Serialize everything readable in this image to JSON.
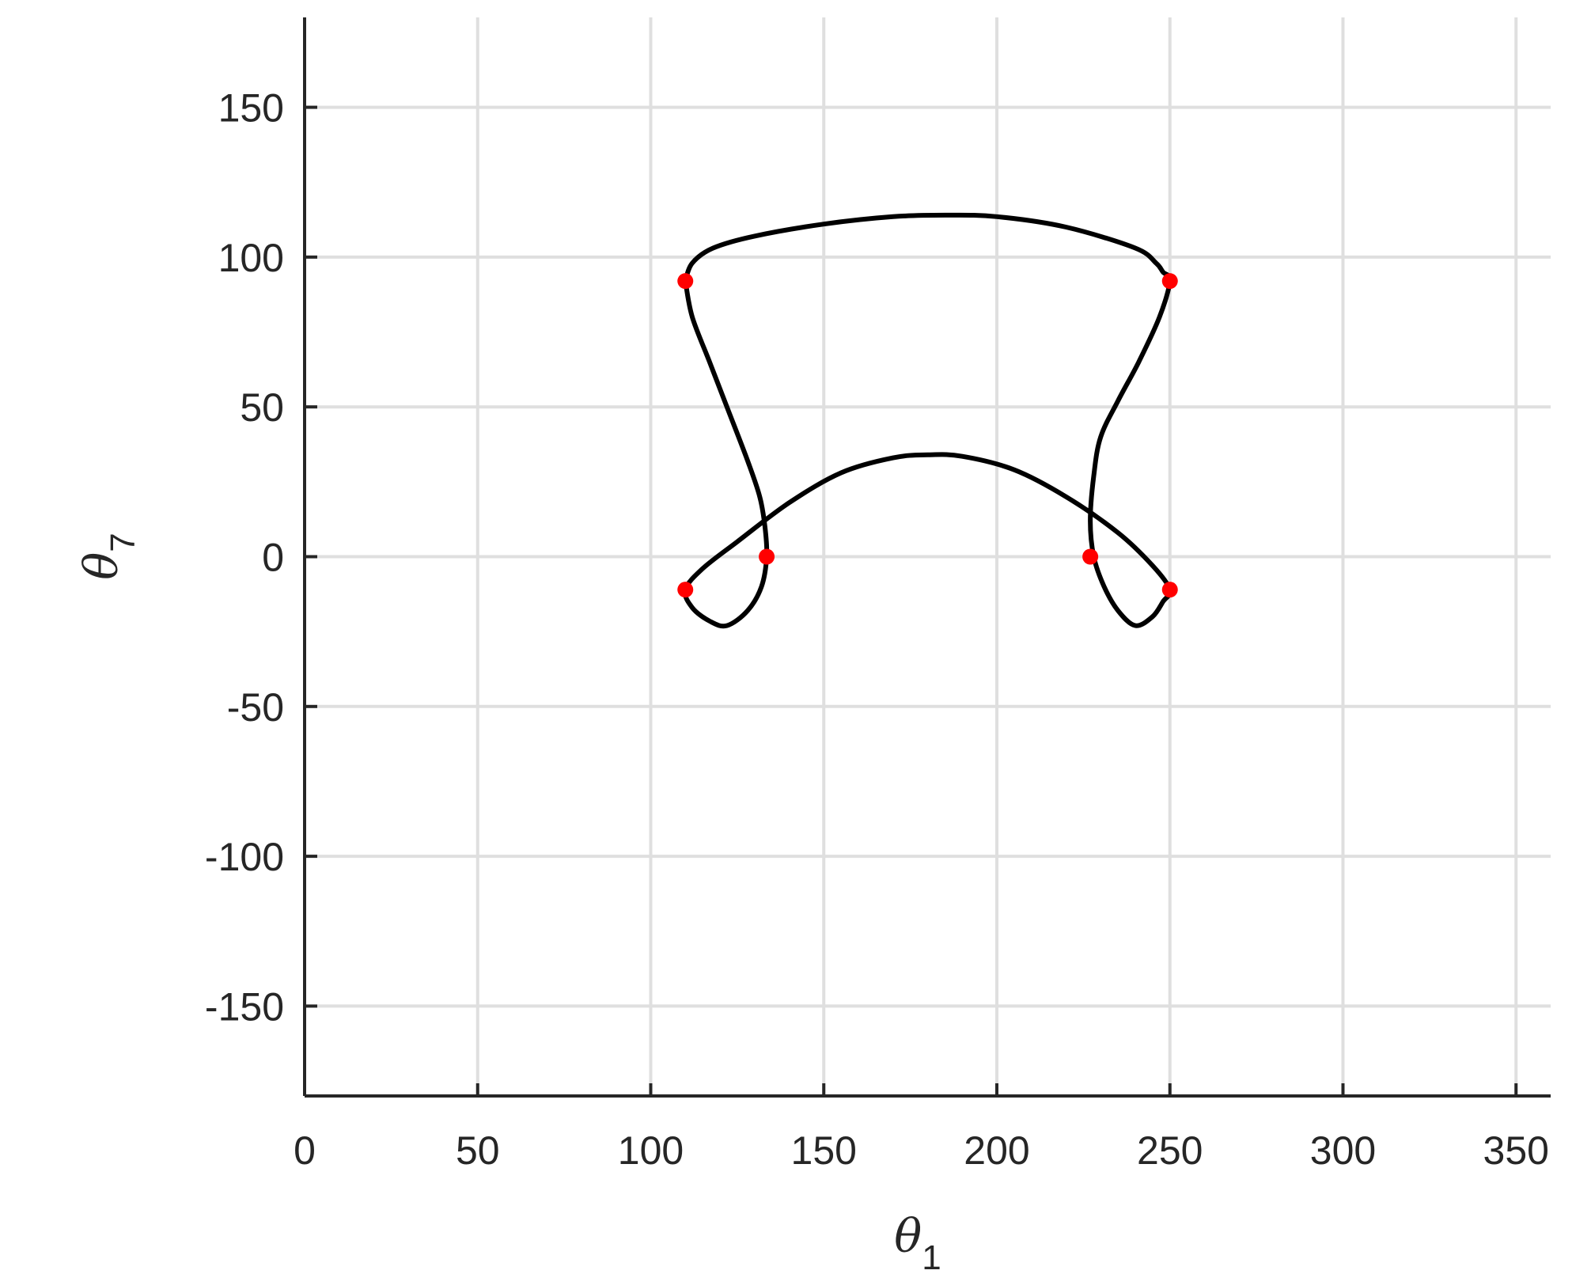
{
  "chart_data": {
    "type": "line",
    "title": "",
    "xlabel": {
      "symbol": "θ",
      "subscript": "1"
    },
    "ylabel": {
      "symbol": "θ",
      "subscript": "7"
    },
    "xlim": [
      0,
      360
    ],
    "ylim": [
      -180,
      180
    ],
    "xticks": [
      0,
      50,
      100,
      150,
      200,
      250,
      300,
      350
    ],
    "yticks": [
      -150,
      -100,
      -50,
      0,
      50,
      100,
      150
    ],
    "xtick_labels": [
      "0",
      "50",
      "100",
      "150",
      "200",
      "250",
      "300",
      "350"
    ],
    "ytick_labels": [
      "-150",
      "-100",
      "-50",
      "0",
      "50",
      "100",
      "150"
    ],
    "grid": true,
    "series": [
      {
        "color": "#000000",
        "x": [
          110,
          112,
          118,
          130,
          150,
          170,
          185,
          200,
          220,
          240,
          246,
          248,
          250,
          247,
          241,
          235,
          230,
          228,
          227,
          228,
          231,
          235,
          240,
          245,
          248,
          250,
          245,
          235,
          220,
          205,
          190,
          180,
          170,
          155,
          140,
          125,
          115,
          110,
          112,
          117,
          122,
          128,
          132,
          133.5,
          133,
          131.5,
          128,
          122,
          117,
          112,
          110
        ],
        "y": [
          92,
          98,
          103,
          107,
          111,
          113.5,
          114,
          113.5,
          110,
          103,
          98,
          95,
          92,
          80,
          65,
          52,
          40,
          27,
          12,
          0,
          -10,
          -18,
          -23,
          -20,
          -15,
          -11,
          -3,
          8,
          20,
          29,
          33.5,
          34,
          33,
          28,
          18,
          5,
          -4,
          -11,
          -17,
          -21.5,
          -23,
          -18,
          -10,
          0,
          10,
          20,
          32,
          50,
          65,
          80,
          92
        ]
      }
    ],
    "markers": {
      "color": "#ff0000",
      "points": [
        {
          "x": 110,
          "y": 92
        },
        {
          "x": 250,
          "y": 92
        },
        {
          "x": 133.5,
          "y": 0
        },
        {
          "x": 227,
          "y": 0
        },
        {
          "x": 110,
          "y": -11
        },
        {
          "x": 250,
          "y": -11
        }
      ]
    }
  }
}
